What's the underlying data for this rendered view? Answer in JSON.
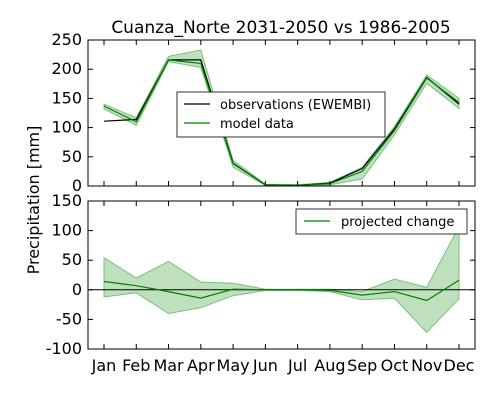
{
  "chart_data": [
    {
      "type": "line",
      "title": "Cuanza_Norte 2031-2050 vs 1986-2005",
      "ylabel": "Precipitation [mm]",
      "categories": [
        "Jan",
        "Feb",
        "Mar",
        "Apr",
        "May",
        "Jun",
        "Jul",
        "Aug",
        "Sep",
        "Oct",
        "Nov",
        "Dec"
      ],
      "ylim": [
        0,
        250
      ],
      "yticks": [
        0,
        50,
        100,
        150,
        200,
        250
      ],
      "show_xtick_labels": false,
      "grid": false,
      "legend_placement": "center-right",
      "series": [
        {
          "name": "observations (EWEMBI)",
          "color": "#000000",
          "values": [
            111,
            114,
            216,
            216,
            39,
            2,
            1,
            5,
            30,
            98,
            186,
            140
          ]
        },
        {
          "name": "model data",
          "color": "#008000",
          "values": [
            137,
            110,
            216,
            210,
            38,
            2,
            1,
            4,
            25,
            95,
            185,
            143
          ],
          "band_low": [
            132,
            104,
            213,
            203,
            32,
            1,
            0,
            2,
            12,
            88,
            176,
            133
          ],
          "band_high": [
            140,
            117,
            222,
            233,
            44,
            3,
            2,
            6,
            32,
            102,
            190,
            150
          ],
          "band_color": "#a8d5a8"
        }
      ]
    },
    {
      "type": "line",
      "title": "",
      "ylabel": "",
      "categories": [
        "Jan",
        "Feb",
        "Mar",
        "Apr",
        "May",
        "Jun",
        "Jul",
        "Aug",
        "Sep",
        "Oct",
        "Nov",
        "Dec"
      ],
      "ylim": [
        -100,
        150
      ],
      "yticks": [
        -100,
        -50,
        0,
        50,
        100,
        150
      ],
      "show_xtick_labels": true,
      "grid": false,
      "zero_line": true,
      "legend_placement": "top-right",
      "series": [
        {
          "name": "projected change",
          "color": "#008000",
          "values": [
            14,
            7,
            -3,
            -14,
            1,
            0,
            0,
            -1,
            -9,
            -3,
            -18,
            16
          ],
          "band_low": [
            -12,
            -5,
            -40,
            -30,
            -10,
            -1,
            -1,
            -3,
            -17,
            -14,
            -72,
            -15
          ],
          "band_high": [
            54,
            20,
            48,
            13,
            11,
            1,
            1,
            1,
            -3,
            18,
            4,
            107
          ],
          "band_color": "#a8d5a8"
        }
      ]
    }
  ],
  "shared_ylabel": "Precipitation [mm]"
}
